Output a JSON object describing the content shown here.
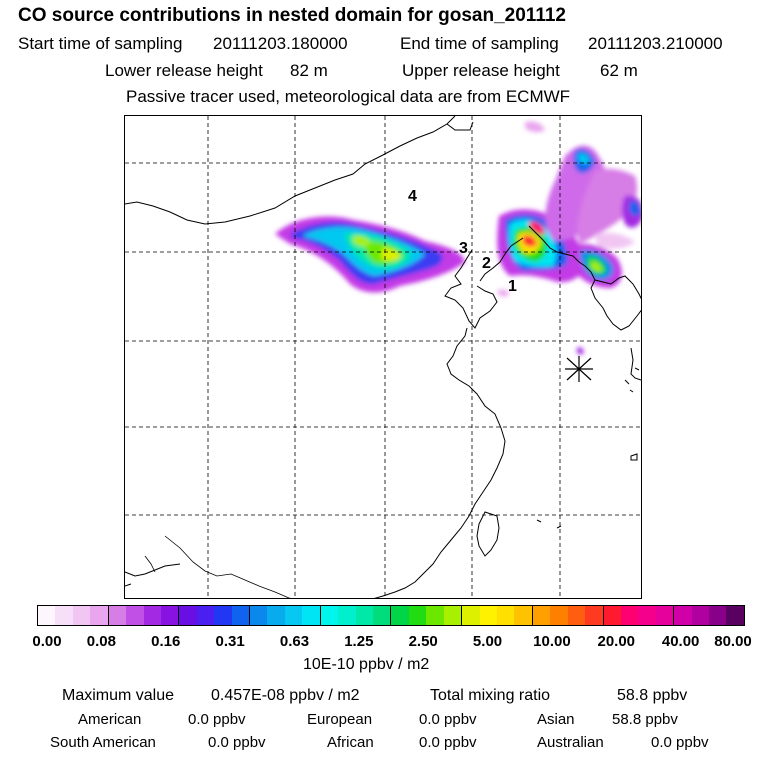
{
  "header": {
    "title": "CO  source contributions in nested domain for gosan_201112",
    "start_label": "Start time of sampling",
    "start_value": "20111203.180000",
    "end_label": "End time of sampling",
    "end_value": "20111203.210000",
    "lower_label": "Lower release height",
    "lower_value": "82 m",
    "upper_label": "Upper release height",
    "upper_value": "62 m",
    "note": "Passive tracer used, meteorological data are from ECMWF"
  },
  "map": {
    "region_labels": [
      "4",
      "3",
      "2",
      "1"
    ],
    "receptor_icon": "asterisk-receptor-marker"
  },
  "colorbar": {
    "colors": [
      "#fdf6fd",
      "#f8dff9",
      "#f1c6f3",
      "#e9a6ee",
      "#d77de6",
      "#c150e6",
      "#a32ae2",
      "#8712e1",
      "#6a0fe4",
      "#4a1ff0",
      "#2237f3",
      "#1063ee",
      "#0a88ec",
      "#08abee",
      "#06c8f0",
      "#00e5f3",
      "#00f6ed",
      "#00f0cd",
      "#00e8a8",
      "#00dd7a",
      "#00d548",
      "#20dc10",
      "#6ce800",
      "#a8f000",
      "#dcf000",
      "#fff200",
      "#ffe000",
      "#ffc200",
      "#ffa000",
      "#ff7f00",
      "#ff5e10",
      "#ff3a20",
      "#ff1a30",
      "#ff0070",
      "#f4008c",
      "#e6009c",
      "#d000a8",
      "#b000a0",
      "#88008a",
      "#5a0060"
    ],
    "ticks": [
      "0.00",
      "0.08",
      "0.16",
      "0.31",
      "0.63",
      "1.25",
      "2.50",
      "5.00",
      "10.00",
      "20.00",
      "40.00",
      "80.00"
    ],
    "units": "10E-10 ppbv / m2"
  },
  "stats": {
    "max_label": "Maximum value",
    "max_value": "0.457E-08 ppbv / m2",
    "total_label": "Total mixing ratio",
    "total_value": "58.8 ppbv",
    "american_label": "American",
    "american_value": "0.0 ppbv",
    "european_label": "European",
    "european_value": "0.0 ppbv",
    "asian_label": "Asian",
    "asian_value": "58.8 ppbv",
    "south_american_label": "South American",
    "south_american_value": "0.0 ppbv",
    "african_label": "African",
    "african_value": "0.0 ppbv",
    "australian_label": "Australian",
    "australian_value": "0.0 ppbv"
  }
}
